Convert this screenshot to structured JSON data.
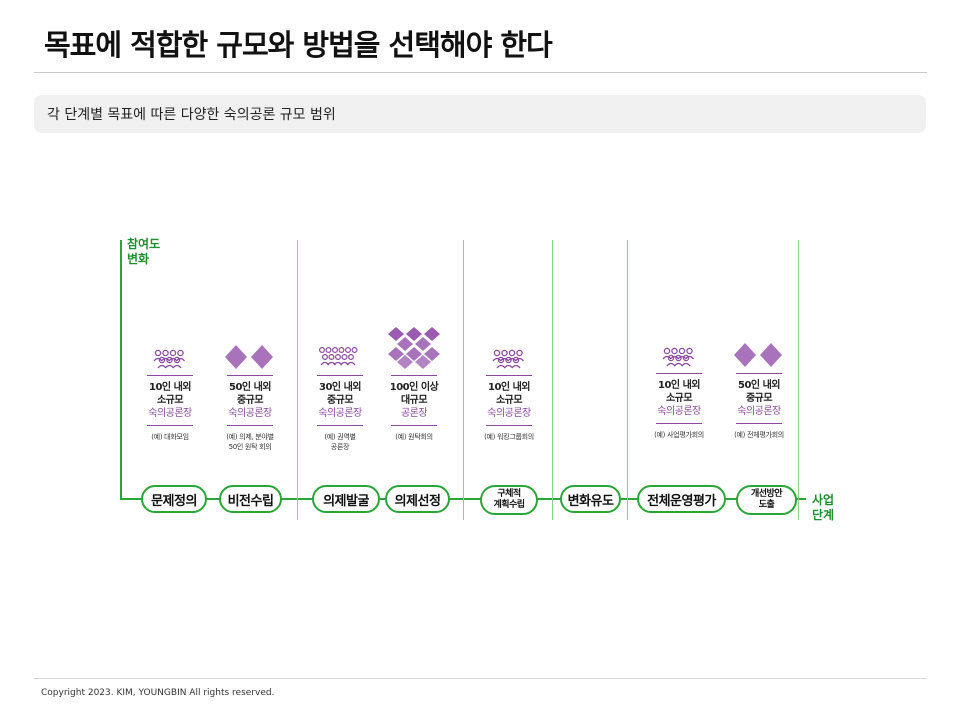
{
  "title": "목표에 적합한 규모와 방법을 선택해야 한다",
  "subtitle": "각 단계별 목표에 따른 다양한 숙의공론 규모 범위",
  "axis": {
    "y_label_1": "참여도",
    "y_label_2": "변화",
    "x_label_1": "사업",
    "x_label_2": "단계"
  },
  "stages": [
    {
      "label": "문제정의"
    },
    {
      "label": "비전수립"
    },
    {
      "label": "의제발굴"
    },
    {
      "label": "의제선정"
    },
    {
      "label_1": "구체적",
      "label_2": "계획수립"
    },
    {
      "label": "변화유도"
    },
    {
      "label": "전체운영평가"
    },
    {
      "label_1": "개선방안",
      "label_2": "도출"
    }
  ],
  "cards": [
    {
      "icon": "group-small-icon",
      "size": "10인 내외",
      "scale": "소규모",
      "kind": "숙의공론장",
      "ex1": "(예) 대화모임",
      "ex2": ""
    },
    {
      "icon": "group-medium-icon",
      "size": "50인 내외",
      "scale": "중규모",
      "kind": "숙의공론장",
      "ex1": "(예) 의제, 분야별",
      "ex2": "50인 원탁 회의"
    },
    {
      "icon": "group-small-icon",
      "size": "30인 내외",
      "scale": "중규모",
      "kind": "숙의공론장",
      "ex1": "(예) 권역별",
      "ex2": "공론장"
    },
    {
      "icon": "group-large-icon",
      "size": "100인 이상",
      "scale": "대규모",
      "kind": "공론장",
      "ex1": "(예) 원탁회의",
      "ex2": ""
    },
    {
      "icon": "group-small-icon",
      "size": "10인 내외",
      "scale": "소규모",
      "kind": "숙의공론장",
      "ex1": "(예) 워킹그룹회의",
      "ex2": ""
    },
    {
      "icon": "group-small-icon",
      "size": "10인 내외",
      "scale": "소규모",
      "kind": "숙의공론장",
      "ex1": "(예) 사업평가회의",
      "ex2": ""
    },
    {
      "icon": "group-medium-icon",
      "size": "50인 내외",
      "scale": "중규모",
      "kind": "숙의공론장",
      "ex1": "(예) 전체평가회의",
      "ex2": ""
    }
  ],
  "colors": {
    "accent_green": "#2aa637",
    "accent_purple": "#8a4aa0"
  },
  "footer": "Copyright 2023. KIM, YOUNGBIN All rights reserved."
}
